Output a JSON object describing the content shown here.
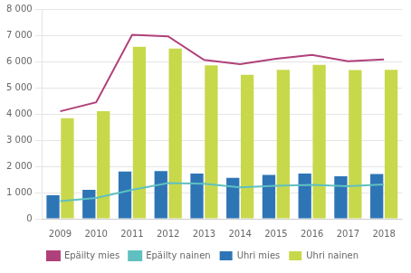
{
  "chart_data": {
    "type": "bar",
    "categories": [
      "2009",
      "2010",
      "2011",
      "2012",
      "2013",
      "2014",
      "2015",
      "2016",
      "2017",
      "2018"
    ],
    "series": [
      {
        "name": "Uhri mies",
        "type": "bar",
        "color": "#2e75b6",
        "values": [
          900,
          1100,
          1800,
          1820,
          1720,
          1560,
          1670,
          1720,
          1620,
          1710
        ]
      },
      {
        "name": "Uhri nainen",
        "type": "bar",
        "color": "#c8d84b",
        "values": [
          3840,
          4100,
          6560,
          6490,
          5850,
          5490,
          5680,
          5870,
          5670,
          5680
        ]
      },
      {
        "name": "Epäilty mies",
        "type": "line",
        "color": "#b0407a",
        "marker": "none",
        "values": [
          4100,
          4440,
          7020,
          6960,
          6060,
          5900,
          6100,
          6250,
          6010,
          6080
        ]
      },
      {
        "name": "Epäilty nainen",
        "type": "line",
        "color": "#60c0c0",
        "marker": "none",
        "values": [
          670,
          790,
          1100,
          1360,
          1340,
          1200,
          1260,
          1290,
          1240,
          1310
        ]
      }
    ],
    "ylim": [
      0,
      8000
    ],
    "yticks": [
      0,
      {
        "value": 1000,
        "label": "1 000"
      },
      {
        "value": 2000,
        "label": "2 000"
      },
      {
        "value": 3000,
        "label": "3 000"
      },
      {
        "value": 4000,
        "label": "4 000"
      },
      {
        "value": 5000,
        "label": "5 000"
      },
      {
        "value": 6000,
        "label": "6 000"
      },
      {
        "value": 7000,
        "label": "7 000"
      },
      {
        "value": 8000,
        "label": "8 000"
      }
    ],
    "grid": true,
    "legend": "bottom"
  }
}
